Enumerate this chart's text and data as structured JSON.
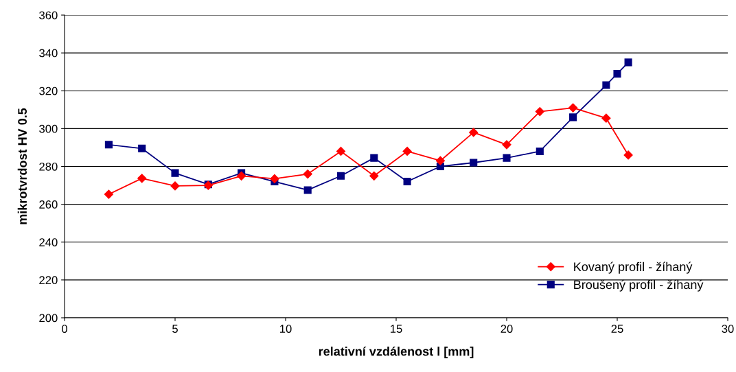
{
  "chart_data": {
    "type": "line",
    "xlabel": "relativní vzdálenost l [mm]",
    "ylabel": "mikrotvrdost HV 0.5",
    "xlim": [
      0,
      30
    ],
    "xticks": [
      0,
      5,
      10,
      15,
      20,
      25,
      30
    ],
    "ylim": [
      200,
      360
    ],
    "yticks": [
      200,
      220,
      240,
      260,
      280,
      300,
      320,
      340,
      360
    ],
    "grid": "y",
    "legend": "bottom right",
    "line_style": "solid",
    "series": [
      {
        "name": "Kovaný profil - žíhaný",
        "color": "#ff0000",
        "marker": "diamond",
        "x": [
          2,
          3.5,
          5,
          6.5,
          8,
          9.5,
          11,
          12.5,
          14,
          15.5,
          17,
          18.5,
          20,
          21.5,
          23,
          24.5,
          25.5
        ],
        "values": [
          265.3,
          273.7,
          269.7,
          270,
          275,
          273.5,
          276,
          288,
          275,
          288,
          283,
          298,
          291.5,
          309,
          311,
          305.5,
          286
        ]
      },
      {
        "name": "Broušený profil - žíhaný",
        "color": "#000080",
        "marker": "square",
        "x": [
          2,
          3.5,
          5,
          6.5,
          8,
          9.5,
          11,
          12.5,
          14,
          15.5,
          17,
          18.5,
          20,
          21.5,
          23,
          24.5,
          25,
          25.5
        ],
        "values": [
          291.5,
          289.5,
          276.5,
          270.5,
          276.5,
          272,
          267.5,
          275,
          284.5,
          272,
          280,
          282,
          284.5,
          288,
          306,
          323,
          329,
          335
        ]
      }
    ]
  }
}
